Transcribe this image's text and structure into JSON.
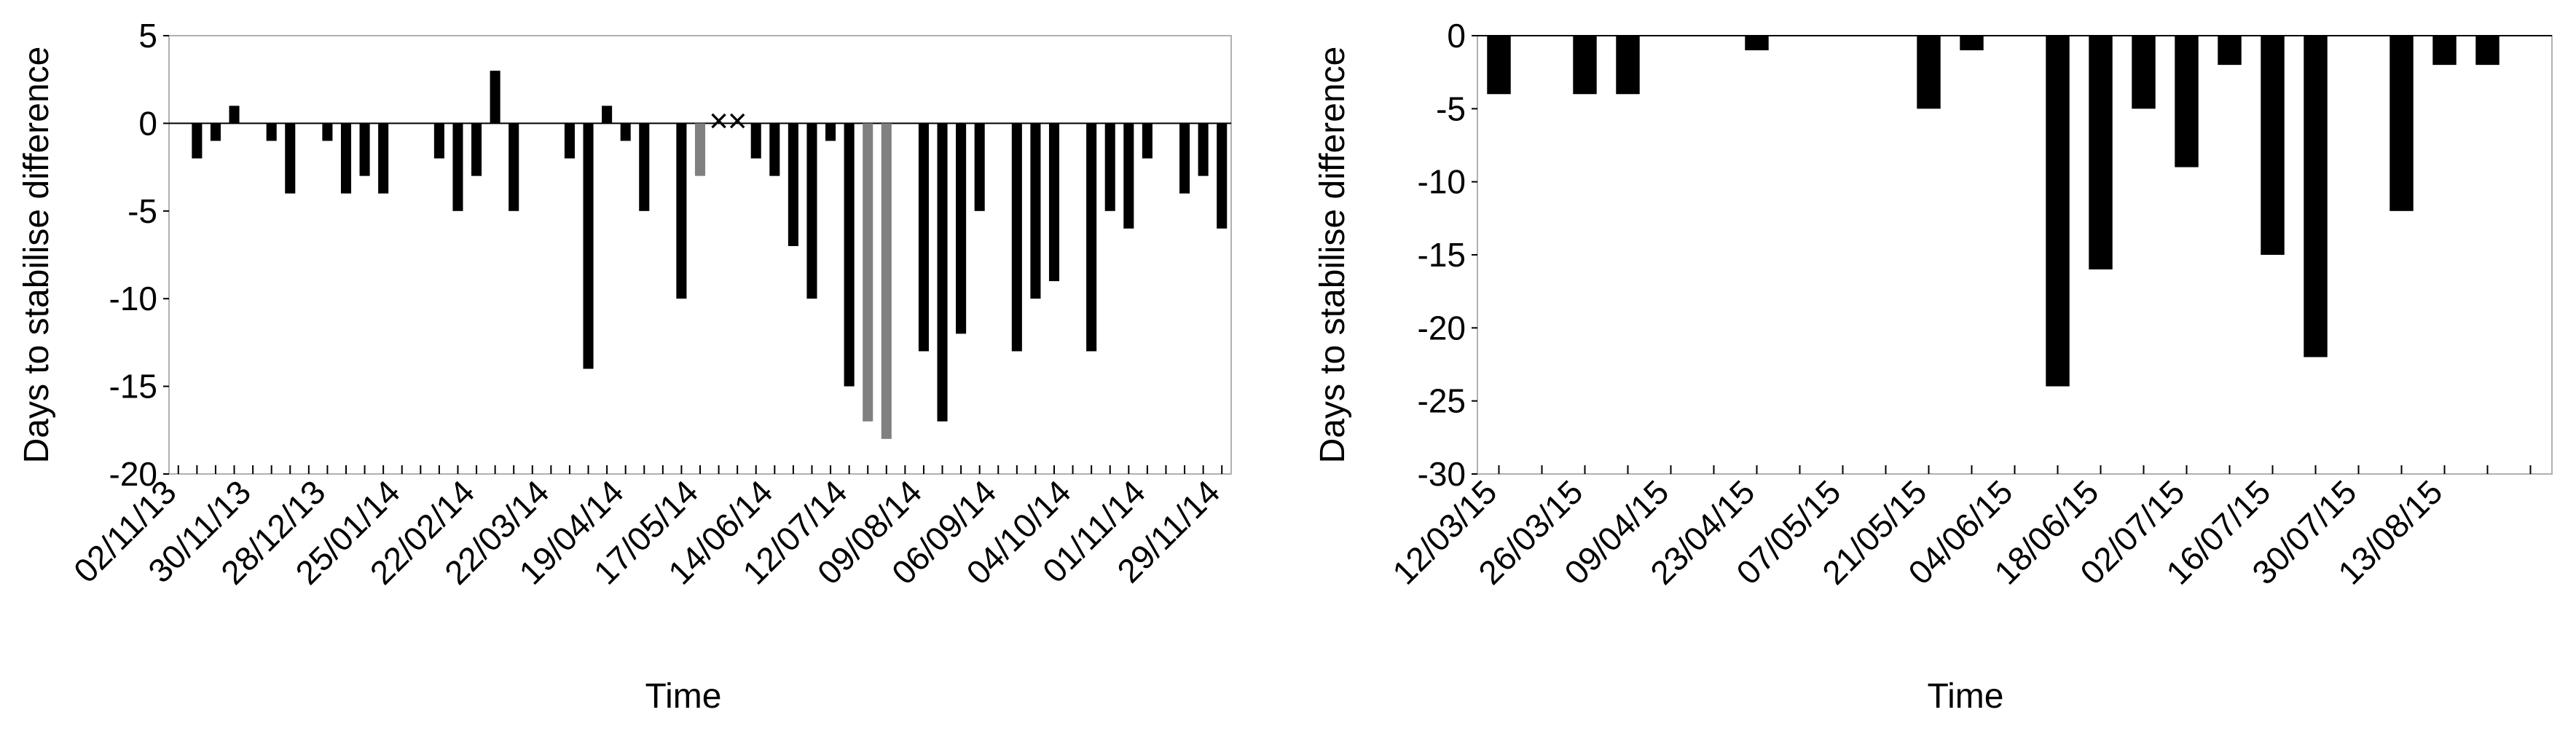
{
  "chart_data": [
    {
      "type": "bar",
      "ylabel": "Days to stabilise difference",
      "xlabel": "Time",
      "ylim": [
        -20,
        5
      ],
      "yticks": [
        "5",
        "0",
        "-5",
        "-10",
        "-15",
        "-20"
      ],
      "xticklabels": [
        "02/11/13",
        "30/11/13",
        "28/12/13",
        "25/01/14",
        "22/02/14",
        "22/03/14",
        "19/04/14",
        "17/05/14",
        "14/06/14",
        "12/07/14",
        "09/08/14",
        "06/09/14",
        "04/10/14",
        "01/11/14",
        "29/11/14"
      ],
      "grid": false,
      "colors": {
        "bar": "#000000",
        "highlight": "#808080",
        "marker": "#000000"
      },
      "bars": [
        {
          "x": 0,
          "value": -2
        },
        {
          "x": 1,
          "value": -1
        },
        {
          "x": 2,
          "value": 1
        },
        {
          "x": 4,
          "value": -1
        },
        {
          "x": 5,
          "value": -4
        },
        {
          "x": 7,
          "value": -1
        },
        {
          "x": 8,
          "value": -4
        },
        {
          "x": 9,
          "value": -3
        },
        {
          "x": 10,
          "value": -4
        },
        {
          "x": 13,
          "value": -2
        },
        {
          "x": 14,
          "value": -5
        },
        {
          "x": 15,
          "value": -3
        },
        {
          "x": 16,
          "value": 3
        },
        {
          "x": 17,
          "value": -5
        },
        {
          "x": 20,
          "value": -2
        },
        {
          "x": 21,
          "value": -14
        },
        {
          "x": 22,
          "value": 1
        },
        {
          "x": 23,
          "value": -1
        },
        {
          "x": 24,
          "value": -5
        },
        {
          "x": 26,
          "value": -10
        },
        {
          "x": 27,
          "value": -3,
          "highlight": true
        },
        {
          "x": 30,
          "value": -2
        },
        {
          "x": 31,
          "value": -3
        },
        {
          "x": 32,
          "value": -7
        },
        {
          "x": 33,
          "value": -10
        },
        {
          "x": 34,
          "value": -1
        },
        {
          "x": 35,
          "value": -15
        },
        {
          "x": 36,
          "value": -17,
          "highlight": true
        },
        {
          "x": 37,
          "value": -18,
          "highlight": true
        },
        {
          "x": 39,
          "value": -13
        },
        {
          "x": 40,
          "value": -17
        },
        {
          "x": 41,
          "value": -12
        },
        {
          "x": 42,
          "value": -5
        },
        {
          "x": 44,
          "value": -13
        },
        {
          "x": 45,
          "value": -10
        },
        {
          "x": 46,
          "value": -9
        },
        {
          "x": 48,
          "value": -13
        },
        {
          "x": 49,
          "value": -5
        },
        {
          "x": 50,
          "value": -6
        },
        {
          "x": 51,
          "value": -2
        },
        {
          "x": 53,
          "value": -4
        },
        {
          "x": 54,
          "value": -3
        },
        {
          "x": 55,
          "value": -6
        }
      ],
      "missing_markers": [
        {
          "x": 28,
          "value": 0,
          "symbol": "×"
        },
        {
          "x": 29,
          "value": 0,
          "symbol": "×"
        }
      ]
    },
    {
      "type": "bar",
      "ylabel": "Days to stabilise difference",
      "xlabel": "Time",
      "ylim": [
        -30,
        0
      ],
      "yticks": [
        "0",
        "-5",
        "-10",
        "-15",
        "-20",
        "-25",
        "-30"
      ],
      "xticklabels": [
        "12/03/15",
        "26/03/15",
        "09/04/15",
        "23/04/15",
        "07/05/15",
        "21/05/15",
        "04/06/15",
        "18/06/15",
        "02/07/15",
        "16/07/15",
        "30/07/15",
        "13/08/15"
      ],
      "grid": false,
      "colors": {
        "bar": "#000000"
      },
      "bars": [
        {
          "x": 0,
          "value": -4
        },
        {
          "x": 2,
          "value": -4
        },
        {
          "x": 3,
          "value": -4
        },
        {
          "x": 6,
          "value": -1
        },
        {
          "x": 10,
          "value": -5
        },
        {
          "x": 11,
          "value": -1
        },
        {
          "x": 13,
          "value": -24
        },
        {
          "x": 14,
          "value": -16
        },
        {
          "x": 15,
          "value": -5
        },
        {
          "x": 16,
          "value": -9
        },
        {
          "x": 17,
          "value": -2
        },
        {
          "x": 18,
          "value": -15
        },
        {
          "x": 19,
          "value": -22
        },
        {
          "x": 21,
          "value": -12
        },
        {
          "x": 22,
          "value": -2
        },
        {
          "x": 23,
          "value": -2
        }
      ]
    }
  ]
}
